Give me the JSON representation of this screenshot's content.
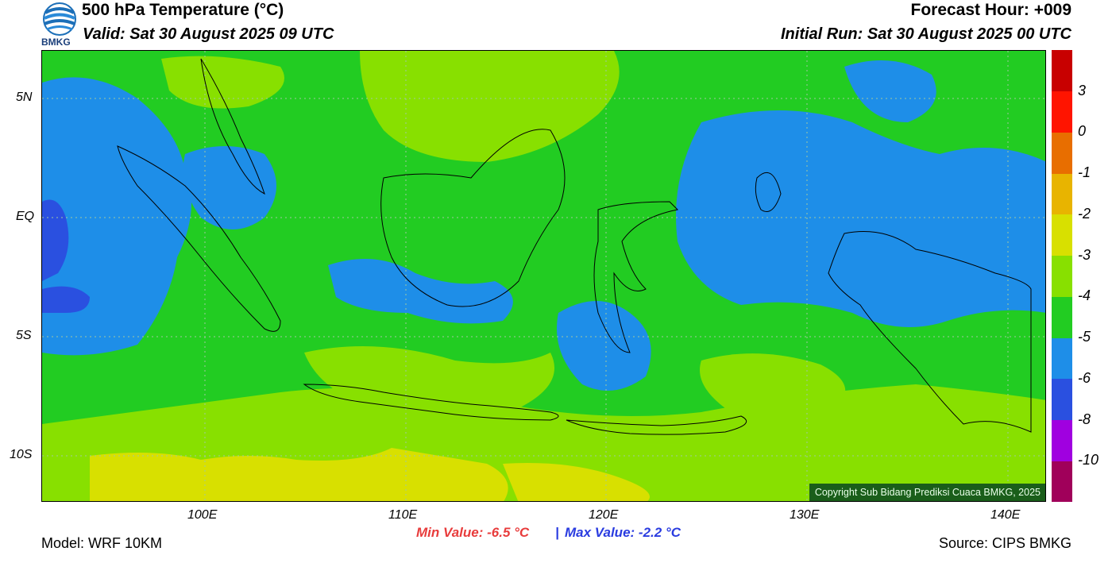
{
  "header": {
    "logo_text": "BMKG",
    "title": "500 hPa Temperature (°C)",
    "valid": "Valid: Sat 30 August 2025 09 UTC",
    "forecast_hour": "Forecast Hour: +009",
    "initial_run": "Initial Run: Sat 30 August 2025 00 UTC"
  },
  "map": {
    "lat_labels": [
      "5N",
      "EQ",
      "5S",
      "10S"
    ],
    "lon_labels": [
      "100E",
      "110E",
      "120E",
      "130E",
      "140E"
    ],
    "copyright": "Copyright Sub Bidang Prediksi Cuaca BMKG, 2025"
  },
  "colorbar": {
    "colors": [
      "#a0005a",
      "#a000e0",
      "#2a50e0",
      "#1e8ee8",
      "#22cc22",
      "#88e000",
      "#d8e000",
      "#e8b400",
      "#e86e00",
      "#ff1400",
      "#c80000"
    ],
    "labels": [
      "-10",
      "-8",
      "-6",
      "-5",
      "-4",
      "-3",
      "-2",
      "-1",
      "0",
      "3"
    ]
  },
  "footer": {
    "model": "Model: WRF 10KM",
    "min_value": "Min Value: -6.5 °C",
    "separator": "|",
    "max_value": "Max Value: -2.2 °C",
    "source": "Source: CIPS BMKG",
    "min_color": "#e83c3c",
    "max_color": "#2a3ce0"
  }
}
